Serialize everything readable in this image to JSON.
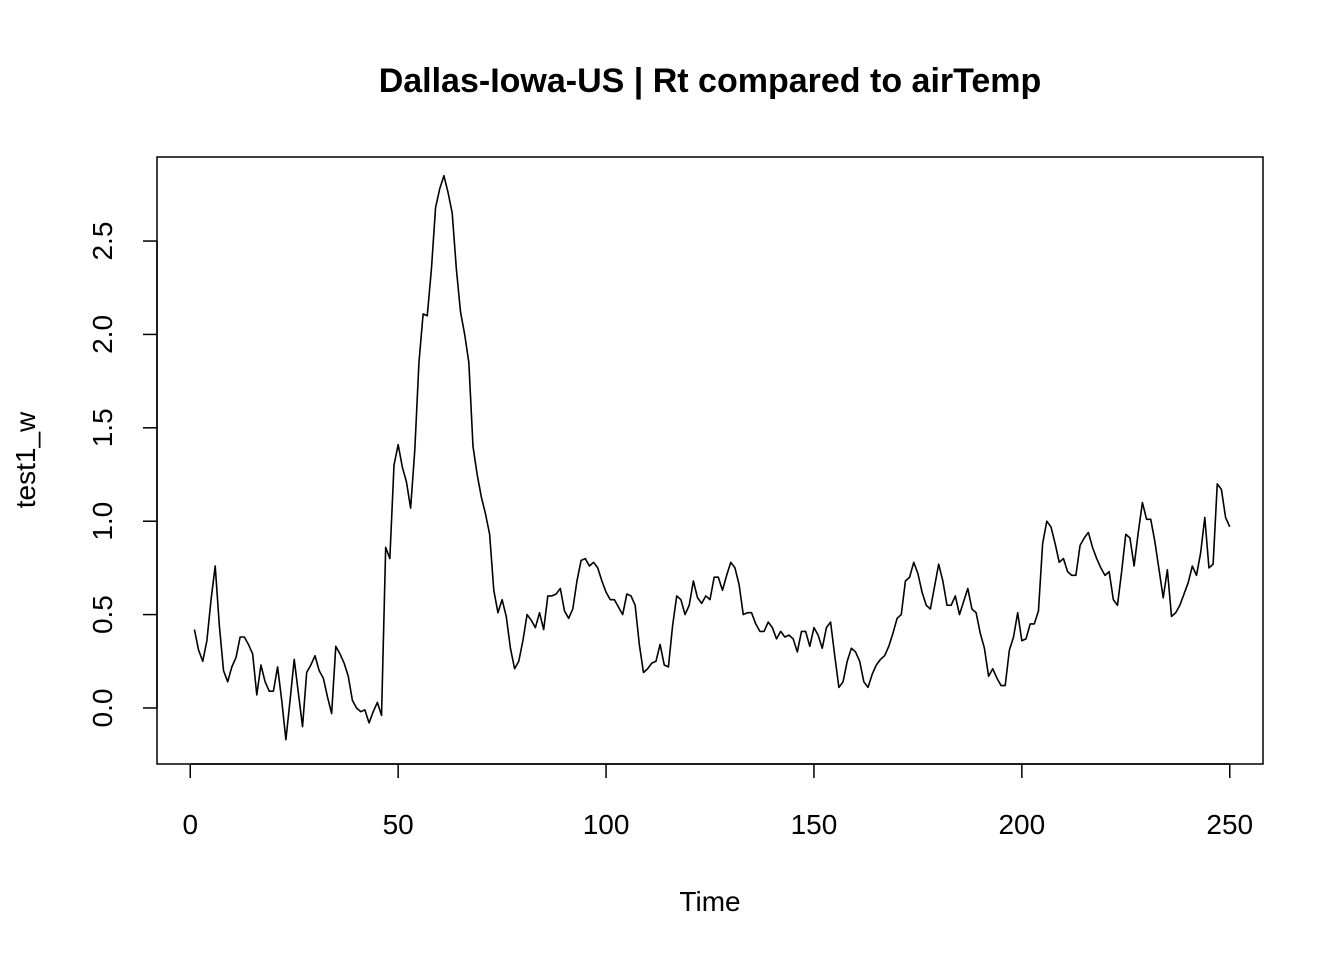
{
  "chart_data": {
    "type": "line",
    "title": "Dallas-Iowa-US | Rt compared to airTemp",
    "xlabel": "Time",
    "ylabel": "test1_w",
    "xlim": [
      -8,
      258
    ],
    "ylim": [
      -0.3,
      2.95
    ],
    "x_ticks": [
      0,
      50,
      100,
      150,
      200,
      250
    ],
    "x_tick_labels": [
      "0",
      "50",
      "100",
      "150",
      "200",
      "250"
    ],
    "y_ticks": [
      0.0,
      0.5,
      1.0,
      1.5,
      2.0,
      2.5
    ],
    "y_tick_labels": [
      "0.0",
      "0.5",
      "1.0",
      "1.5",
      "2.0",
      "2.5"
    ],
    "grid": false,
    "legend": "none",
    "x_start": 1,
    "series": [
      {
        "values": [
          0.42,
          0.31,
          0.25,
          0.36,
          0.58,
          0.76,
          0.44,
          0.2,
          0.14,
          0.22,
          0.27,
          0.38,
          0.38,
          0.34,
          0.29,
          0.07,
          0.23,
          0.14,
          0.09,
          0.09,
          0.22,
          0.04,
          -0.17,
          0.04,
          0.26,
          0.08,
          -0.1,
          0.19,
          0.23,
          0.28,
          0.2,
          0.16,
          0.06,
          -0.03,
          0.33,
          0.29,
          0.24,
          0.17,
          0.04,
          0.0,
          -0.02,
          -0.01,
          -0.08,
          -0.02,
          0.03,
          -0.04,
          0.86,
          0.8,
          1.3,
          1.41,
          1.29,
          1.21,
          1.07,
          1.38,
          1.85,
          2.11,
          2.1,
          2.35,
          2.68,
          2.78,
          2.85,
          2.76,
          2.65,
          2.35,
          2.12,
          2.0,
          1.85,
          1.4,
          1.25,
          1.13,
          1.04,
          0.93,
          0.63,
          0.51,
          0.58,
          0.49,
          0.32,
          0.21,
          0.25,
          0.36,
          0.5,
          0.47,
          0.43,
          0.51,
          0.42,
          0.6,
          0.6,
          0.61,
          0.64,
          0.52,
          0.48,
          0.53,
          0.68,
          0.79,
          0.8,
          0.76,
          0.78,
          0.75,
          0.68,
          0.62,
          0.58,
          0.58,
          0.54,
          0.5,
          0.61,
          0.6,
          0.55,
          0.34,
          0.19,
          0.21,
          0.24,
          0.25,
          0.34,
          0.23,
          0.22,
          0.44,
          0.6,
          0.58,
          0.5,
          0.55,
          0.68,
          0.59,
          0.56,
          0.6,
          0.58,
          0.7,
          0.7,
          0.63,
          0.71,
          0.78,
          0.75,
          0.66,
          0.5,
          0.51,
          0.51,
          0.45,
          0.41,
          0.41,
          0.46,
          0.43,
          0.37,
          0.41,
          0.38,
          0.39,
          0.37,
          0.3,
          0.41,
          0.41,
          0.33,
          0.43,
          0.39,
          0.32,
          0.43,
          0.46,
          0.28,
          0.11,
          0.14,
          0.25,
          0.32,
          0.3,
          0.25,
          0.14,
          0.11,
          0.18,
          0.23,
          0.26,
          0.28,
          0.33,
          0.4,
          0.48,
          0.5,
          0.68,
          0.7,
          0.78,
          0.72,
          0.62,
          0.55,
          0.53,
          0.65,
          0.77,
          0.68,
          0.55,
          0.55,
          0.6,
          0.5,
          0.57,
          0.64,
          0.53,
          0.51,
          0.4,
          0.32,
          0.17,
          0.21,
          0.16,
          0.12,
          0.12,
          0.31,
          0.38,
          0.51,
          0.36,
          0.37,
          0.45,
          0.45,
          0.52,
          0.88,
          1.0,
          0.97,
          0.88,
          0.78,
          0.8,
          0.73,
          0.71,
          0.71,
          0.87,
          0.91,
          0.94,
          0.86,
          0.8,
          0.75,
          0.71,
          0.73,
          0.58,
          0.55,
          0.73,
          0.93,
          0.91,
          0.76,
          0.94,
          1.1,
          1.01,
          1.01,
          0.89,
          0.74,
          0.59,
          0.74,
          0.49,
          0.51,
          0.55,
          0.61,
          0.67,
          0.76,
          0.71,
          0.83,
          1.02,
          0.75,
          0.77,
          1.2,
          1.17,
          1.02,
          0.97
        ]
      }
    ]
  }
}
